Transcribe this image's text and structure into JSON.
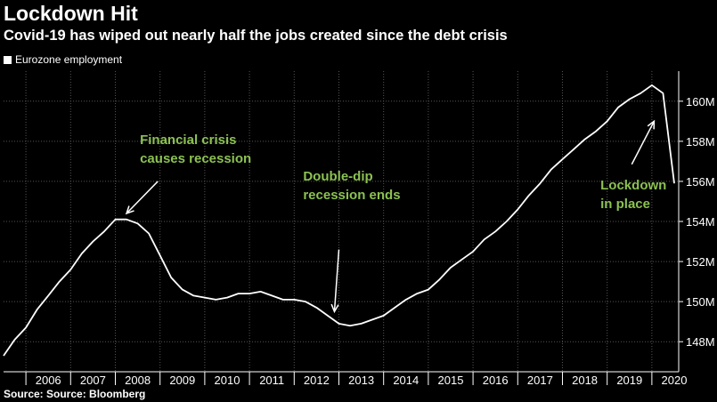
{
  "header": {
    "title": "Lockdown Hit",
    "subtitle": "Covid-19 has wiped out nearly half the jobs created since the debt crisis"
  },
  "legend": {
    "label": "Eurozone employment"
  },
  "footer": {
    "source": "Source: Source: Bloomberg"
  },
  "colors": {
    "background": "#000000",
    "line": "#ffffff",
    "annotation": "#8cc152",
    "grid": "#555555"
  },
  "chart_data": {
    "type": "line",
    "title": "Lockdown Hit",
    "subtitle": "Covid-19 has wiped out nearly half the jobs created since the debt crisis",
    "xlabel": "",
    "ylabel": "",
    "xlim": [
      2005.5,
      2020.6
    ],
    "ylim": [
      146.5,
      161.5
    ],
    "y_axis_side": "right",
    "grid": true,
    "legend_position": "top-left",
    "x_ticks": [
      "2006",
      "2007",
      "2008",
      "2009",
      "2010",
      "2011",
      "2012",
      "2013",
      "2014",
      "2015",
      "2016",
      "2017",
      "2018",
      "2019",
      "2020"
    ],
    "y_ticks": [
      {
        "value": 148,
        "label": "148M"
      },
      {
        "value": 150,
        "label": "150M"
      },
      {
        "value": 152,
        "label": "152M"
      },
      {
        "value": 154,
        "label": "154M"
      },
      {
        "value": 156,
        "label": "156M"
      },
      {
        "value": 158,
        "label": "158M"
      },
      {
        "value": 160,
        "label": "160M"
      }
    ],
    "series": [
      {
        "name": "Eurozone employment",
        "points": [
          [
            2005.5,
            147.3
          ],
          [
            2005.75,
            148.1
          ],
          [
            2006.0,
            148.7
          ],
          [
            2006.25,
            149.6
          ],
          [
            2006.5,
            150.3
          ],
          [
            2006.75,
            151.0
          ],
          [
            2007.0,
            151.6
          ],
          [
            2007.25,
            152.4
          ],
          [
            2007.5,
            153.0
          ],
          [
            2007.75,
            153.5
          ],
          [
            2008.0,
            154.1
          ],
          [
            2008.25,
            154.1
          ],
          [
            2008.5,
            153.9
          ],
          [
            2008.75,
            153.4
          ],
          [
            2009.0,
            152.3
          ],
          [
            2009.25,
            151.2
          ],
          [
            2009.5,
            150.6
          ],
          [
            2009.75,
            150.3
          ],
          [
            2010.0,
            150.2
          ],
          [
            2010.25,
            150.1
          ],
          [
            2010.5,
            150.2
          ],
          [
            2010.75,
            150.4
          ],
          [
            2011.0,
            150.4
          ],
          [
            2011.25,
            150.5
          ],
          [
            2011.5,
            150.3
          ],
          [
            2011.75,
            150.1
          ],
          [
            2012.0,
            150.1
          ],
          [
            2012.25,
            150.0
          ],
          [
            2012.5,
            149.7
          ],
          [
            2012.75,
            149.3
          ],
          [
            2013.0,
            148.9
          ],
          [
            2013.25,
            148.8
          ],
          [
            2013.5,
            148.9
          ],
          [
            2013.75,
            149.1
          ],
          [
            2014.0,
            149.3
          ],
          [
            2014.25,
            149.7
          ],
          [
            2014.5,
            150.1
          ],
          [
            2014.75,
            150.4
          ],
          [
            2015.0,
            150.6
          ],
          [
            2015.25,
            151.1
          ],
          [
            2015.5,
            151.7
          ],
          [
            2015.75,
            152.1
          ],
          [
            2016.0,
            152.5
          ],
          [
            2016.25,
            153.1
          ],
          [
            2016.5,
            153.5
          ],
          [
            2016.75,
            154.0
          ],
          [
            2017.0,
            154.6
          ],
          [
            2017.25,
            155.3
          ],
          [
            2017.5,
            155.9
          ],
          [
            2017.75,
            156.6
          ],
          [
            2018.0,
            157.1
          ],
          [
            2018.25,
            157.6
          ],
          [
            2018.5,
            158.1
          ],
          [
            2018.75,
            158.5
          ],
          [
            2019.0,
            159.0
          ],
          [
            2019.25,
            159.7
          ],
          [
            2019.5,
            160.1
          ],
          [
            2019.75,
            160.4
          ],
          [
            2020.0,
            160.8
          ],
          [
            2020.25,
            160.4
          ],
          [
            2020.5,
            155.9
          ]
        ]
      }
    ],
    "annotations": [
      {
        "lines": [
          "Financial crisis",
          "causes recession"
        ],
        "text_at": [
          2008.55,
          157.85
        ],
        "arrow_from": [
          2008.95,
          156.0
        ],
        "arrow_to": [
          2008.25,
          154.4
        ]
      },
      {
        "lines": [
          "Double-dip",
          "recession ends"
        ],
        "text_at": [
          2012.2,
          156.05
        ],
        "arrow_from": [
          2013.0,
          152.6
        ],
        "arrow_to": [
          2012.9,
          149.5
        ]
      },
      {
        "lines": [
          "Lockdown",
          "in place"
        ],
        "text_at": [
          2018.85,
          155.6
        ],
        "arrow_from": [
          2019.55,
          156.85
        ],
        "arrow_to": [
          2020.05,
          159.0
        ]
      }
    ]
  }
}
